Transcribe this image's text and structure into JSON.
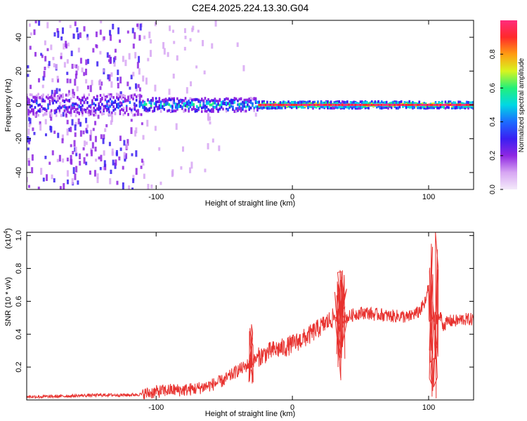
{
  "title": "C2E4.2025.224.13.30.G04",
  "colors": {
    "snr_line": "#e8322f",
    "background": "#ffffff",
    "axis": "#000000",
    "colormap": [
      "#f4eafa",
      "#d7a6f3",
      "#8f27e2",
      "#3a1ff2",
      "#1c6cff",
      "#00d8e4",
      "#22f07a",
      "#d8f51f",
      "#ff9c13",
      "#ff2a2a",
      "#ff2b7c"
    ]
  },
  "chart_data": [
    {
      "type": "heatmap",
      "title": "C2E4.2025.224.13.30.G04",
      "xlabel": "Height of straight line (km)",
      "ylabel": "Frequency (Hz)",
      "xlim": [
        -195,
        133
      ],
      "ylim": [
        -50,
        50
      ],
      "xticks": [
        -100,
        0,
        100
      ],
      "xtick_labels": [
        "-100",
        "0",
        "100"
      ],
      "yticks": [
        -40,
        -20,
        0,
        20,
        40
      ],
      "ytick_labels": [
        "-40",
        "-20",
        "0",
        "20",
        "40"
      ],
      "colorbar": {
        "label": "Normalized spectral amplitude",
        "range": [
          0,
          1
        ],
        "ticks": [
          0.0,
          0.2,
          0.4,
          0.6,
          0.8
        ],
        "tick_labels": [
          "0.0",
          "0.2",
          "0.4",
          "0.6",
          "0.8"
        ]
      },
      "description_points": {
        "ridge_frequency_hz": 0,
        "high_amplitude_segment_km": [
          -25,
          130
        ],
        "noisy_segment_km": [
          -195,
          -110
        ],
        "dip_near_km": [
          105,
          -4
        ]
      }
    },
    {
      "type": "line",
      "xlabel": "Height of straight line (km)",
      "ylabel": "SNR (10 * v/v)",
      "y_multiplier_label": "(x10",
      "y_multiplier_exp": "4",
      "y_multiplier_close": ")",
      "xlim": [
        -195,
        133
      ],
      "ylim": [
        0,
        1.02
      ],
      "xticks": [
        -100,
        0,
        100
      ],
      "xtick_labels": [
        "-100",
        "0",
        "100"
      ],
      "yticks": [
        0.2,
        0.4,
        0.6,
        0.8,
        1.0
      ],
      "ytick_labels": [
        "0.2",
        "0.4",
        "0.6",
        "0.8",
        "1.0"
      ],
      "series": [
        {
          "x": [
            -195,
            -180,
            -160,
            -140,
            -120,
            -110,
            -100,
            -90,
            -80,
            -70,
            -60,
            -50,
            -45,
            -40,
            -35,
            -30,
            -25,
            -20,
            -15,
            -10,
            -5,
            0,
            5,
            10,
            15,
            20,
            25,
            30,
            35,
            38,
            40,
            45,
            50,
            55,
            60,
            65,
            70,
            75,
            80,
            85,
            88,
            92,
            95,
            98,
            100,
            102,
            104,
            105,
            106,
            107,
            108,
            110,
            115,
            120,
            125,
            133
          ],
          "y": [
            0.02,
            0.02,
            0.025,
            0.03,
            0.03,
            0.035,
            0.05,
            0.06,
            0.06,
            0.07,
            0.09,
            0.12,
            0.15,
            0.18,
            0.2,
            0.23,
            0.26,
            0.28,
            0.3,
            0.31,
            0.32,
            0.34,
            0.36,
            0.38,
            0.41,
            0.44,
            0.47,
            0.5,
            0.52,
            0.5,
            0.5,
            0.52,
            0.53,
            0.53,
            0.52,
            0.52,
            0.51,
            0.51,
            0.51,
            0.5,
            0.52,
            0.53,
            0.56,
            0.6,
            0.7,
            0.05,
            0.95,
            0.02,
            0.8,
            0.1,
            0.5,
            0.45,
            0.48,
            0.48,
            0.49,
            0.49
          ],
          "spikes": [
            {
              "x": -30,
              "ymax": 0.46,
              "ymin": 0.1
            },
            {
              "x": 33,
              "ymax": 0.72,
              "ymin": 0.2
            },
            {
              "x": 35,
              "ymax": 0.79,
              "ymin": 0.12
            },
            {
              "x": 38,
              "ymax": 0.76,
              "ymin": 0.25
            },
            {
              "x": 102,
              "ymax": 0.95,
              "ymin": 0.02
            },
            {
              "x": 105,
              "ymax": 1.02,
              "ymin": 0.01
            }
          ]
        }
      ]
    }
  ]
}
